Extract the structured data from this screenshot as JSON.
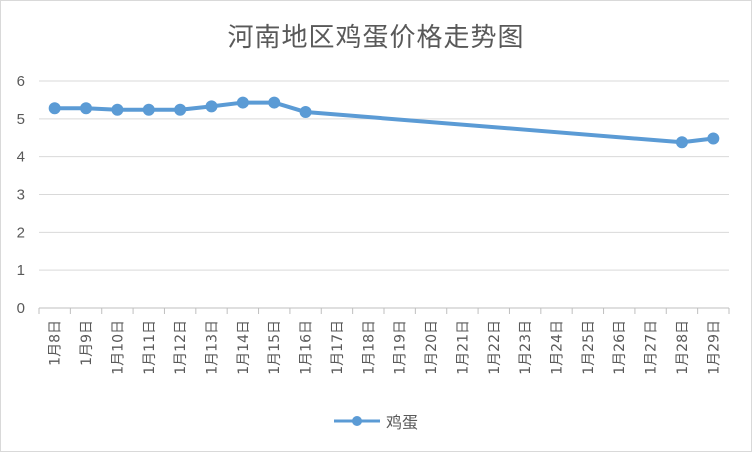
{
  "chart_data": {
    "type": "line",
    "title": "河南地区鸡蛋价格走势图",
    "xlabel": "",
    "ylabel": "",
    "ylim": [
      0,
      6
    ],
    "yticks": [
      "0",
      "1",
      "2",
      "3",
      "4",
      "5",
      "6"
    ],
    "grid": true,
    "legend_position": "bottom",
    "categories": [
      "1月8日",
      "1月9日",
      "1月10日",
      "1月11日",
      "1月12日",
      "1月13日",
      "1月14日",
      "1月15日",
      "1月16日",
      "1月17日",
      "1月18日",
      "1月19日",
      "1月20日",
      "1月21日",
      "1月22日",
      "1月23日",
      "1月24日",
      "1月25日",
      "1月26日",
      "1月27日",
      "1月28日",
      "1月29日"
    ],
    "series": [
      {
        "name": "鸡蛋",
        "color": "#5b9bd5",
        "values": [
          5.28,
          5.28,
          5.24,
          5.24,
          5.24,
          5.33,
          5.43,
          5.43,
          5.18,
          null,
          null,
          null,
          null,
          null,
          null,
          null,
          null,
          null,
          null,
          null,
          4.38,
          4.48
        ],
        "gaps_connected": true
      }
    ]
  }
}
